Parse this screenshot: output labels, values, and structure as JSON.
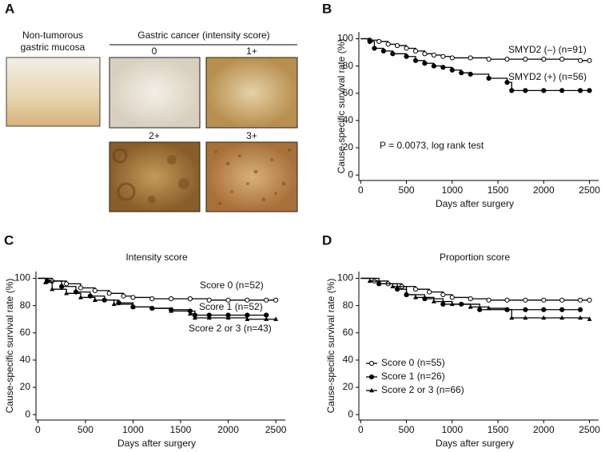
{
  "panel_a": {
    "letter": "A",
    "left_label": [
      "Non-tumorous",
      "gastric mucosa"
    ],
    "group_label": "Gastric cancer (intensity score)",
    "scores": [
      "0",
      "1+",
      "2+",
      "3+"
    ]
  },
  "chart_data": [
    {
      "type": "line",
      "panel": "B",
      "xlabel": "Days after surgery",
      "ylabel": "Cause-specific survival rate (%)",
      "xlim": [
        -20,
        2600
      ],
      "ylim": [
        -4,
        105
      ],
      "xticks": [
        0,
        500,
        1000,
        1500,
        2000,
        2500
      ],
      "yticks": [
        0,
        20,
        40,
        60,
        80,
        100
      ],
      "step": true,
      "legend": "inline",
      "annotations": [
        "P = 0.0073, log rank test"
      ],
      "series": [
        {
          "name": "SMYD2 (–) (n=91)",
          "color": "#000000",
          "marker": "open-circle",
          "x": [
            0,
            100,
            200,
            300,
            400,
            500,
            600,
            700,
            800,
            900,
            1000,
            1200,
            1400,
            1600,
            1800,
            2000,
            2200,
            2400,
            2500
          ],
          "values": [
            100,
            99,
            98,
            96,
            95,
            93,
            91,
            89,
            88,
            87,
            86,
            86,
            85,
            85,
            85,
            85,
            85,
            84,
            84
          ]
        },
        {
          "name": "SMYD2 (+) (n=56)",
          "color": "#000000",
          "marker": "filled-circle",
          "x": [
            0,
            100,
            150,
            250,
            350,
            500,
            600,
            700,
            800,
            900,
            1000,
            1100,
            1200,
            1400,
            1600,
            1650,
            1800,
            2000,
            2200,
            2400,
            2500
          ],
          "values": [
            100,
            98,
            93,
            91,
            89,
            87,
            84,
            82,
            80,
            79,
            77,
            75,
            74,
            71,
            68,
            62,
            62,
            62,
            62,
            62,
            62
          ]
        }
      ]
    },
    {
      "type": "line",
      "panel": "C",
      "title": "Intensity score",
      "xlabel": "Days after surgery",
      "ylabel": "Cause-specific survival rate (%)",
      "xlim": [
        -20,
        2600
      ],
      "ylim": [
        -4,
        105
      ],
      "xticks": [
        0,
        500,
        1000,
        1500,
        2000,
        2500
      ],
      "yticks": [
        0,
        20,
        40,
        60,
        80,
        100
      ],
      "step": true,
      "legend": "inline",
      "series": [
        {
          "name": "Score 0 (n=52)",
          "color": "#000000",
          "marker": "open-circle",
          "x": [
            0,
            150,
            300,
            450,
            600,
            750,
            900,
            1000,
            1200,
            1400,
            1600,
            1800,
            2000,
            2200,
            2400,
            2500
          ],
          "values": [
            100,
            98,
            96,
            93,
            91,
            89,
            87,
            86,
            85,
            85,
            85,
            84,
            84,
            84,
            84,
            84
          ]
        },
        {
          "name": "Score 1 (n=52)",
          "color": "#000000",
          "marker": "filled-circle",
          "x": [
            0,
            100,
            250,
            400,
            550,
            700,
            850,
            1000,
            1200,
            1400,
            1600,
            1650,
            1800,
            2000,
            2200,
            2400
          ],
          "values": [
            100,
            98,
            94,
            90,
            87,
            84,
            82,
            79,
            78,
            77,
            76,
            73,
            73,
            73,
            73,
            73
          ]
        },
        {
          "name": "Score 2 or 3 (n=43)",
          "color": "#000000",
          "marker": "triangle",
          "x": [
            0,
            80,
            150,
            300,
            450,
            600,
            800,
            1000,
            1200,
            1400,
            1600,
            1650,
            1800,
            2000,
            2200,
            2400,
            2500
          ],
          "values": [
            100,
            97,
            92,
            89,
            86,
            84,
            81,
            79,
            78,
            76,
            74,
            71,
            71,
            71,
            70,
            70,
            70
          ]
        }
      ]
    },
    {
      "type": "line",
      "panel": "D",
      "title": "Proportion score",
      "xlabel": "Days after surgery",
      "ylabel": "Cause-specific survival rate (%)",
      "xlim": [
        -20,
        2600
      ],
      "ylim": [
        -4,
        105
      ],
      "xticks": [
        0,
        500,
        1000,
        1500,
        2000,
        2500
      ],
      "yticks": [
        0,
        20,
        40,
        60,
        80,
        100
      ],
      "step": true,
      "legend": "lower left",
      "series": [
        {
          "name": "Score 0 (n=55)",
          "color": "#000000",
          "marker": "open-circle",
          "x": [
            0,
            150,
            300,
            450,
            600,
            750,
            900,
            1000,
            1200,
            1400,
            1600,
            1800,
            2000,
            2200,
            2400,
            2500
          ],
          "values": [
            100,
            98,
            96,
            94,
            92,
            90,
            88,
            86,
            85,
            84,
            84,
            84,
            84,
            84,
            84,
            84
          ]
        },
        {
          "name": "Score 1 (n=26)",
          "color": "#000000",
          "marker": "filled-circle",
          "x": [
            0,
            200,
            400,
            500,
            700,
            900,
            1100,
            1300,
            1600,
            1800,
            2000,
            2200,
            2400
          ],
          "values": [
            100,
            96,
            92,
            88,
            85,
            81,
            81,
            77,
            77,
            77,
            77,
            77,
            77
          ]
        },
        {
          "name": "Score 2 or 3 (n=66)",
          "color": "#000000",
          "marker": "triangle",
          "x": [
            0,
            100,
            200,
            350,
            500,
            600,
            800,
            1000,
            1200,
            1400,
            1600,
            1650,
            1800,
            2000,
            2200,
            2400,
            2500
          ],
          "values": [
            100,
            98,
            96,
            94,
            88,
            86,
            83,
            81,
            79,
            78,
            77,
            71,
            71,
            71,
            71,
            71,
            70
          ]
        }
      ]
    }
  ]
}
